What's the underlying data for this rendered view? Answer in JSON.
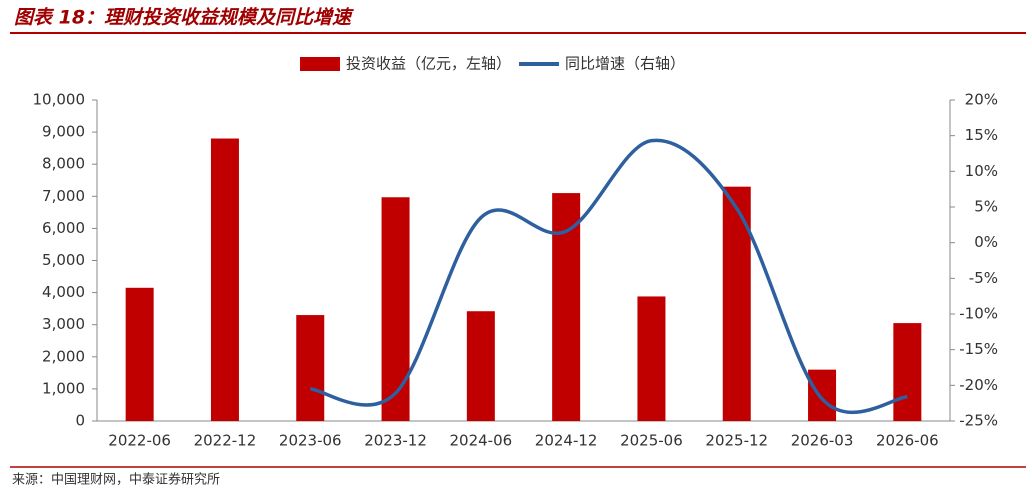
{
  "chart_data": {
    "type": "bar_line",
    "title": "图表 18：理财投资收益规模及同比增速",
    "source": "来源：中国理财网，中泰证券研究所",
    "categories": [
      "2022-06",
      "2022-12",
      "2023-06",
      "2023-12",
      "2024-06",
      "2024-12",
      "2025-06",
      "2025-12",
      "2026-03",
      "2026-06"
    ],
    "series": [
      {
        "name": "投资收益（亿元，左轴）",
        "type": "bar",
        "color": "#c00000",
        "values": [
          4150,
          8800,
          3300,
          6970,
          3420,
          7100,
          3880,
          7300,
          1600,
          3050
        ]
      },
      {
        "name": "同比增速（右轴）",
        "type": "line",
        "axis": "y2",
        "color": "#2e5f9e",
        "values": [
          null,
          null,
          -20.5,
          -21.1,
          3.5,
          1.6,
          14.3,
          4.8,
          -21.9,
          -21.6
        ]
      }
    ],
    "ylim": [
      0,
      10000
    ],
    "yticks": [
      0,
      {
        "value": 1000,
        "label": "1,000"
      },
      {
        "value": 2000,
        "label": "2,000"
      },
      {
        "value": 3000,
        "label": "3,000"
      },
      {
        "value": 4000,
        "label": "4,000"
      },
      {
        "value": 5000,
        "label": "5,000"
      },
      {
        "value": 6000,
        "label": "6,000"
      },
      {
        "value": 7000,
        "label": "7,000"
      },
      {
        "value": 8000,
        "label": "8,000"
      },
      {
        "value": 9000,
        "label": "9,000"
      },
      {
        "value": 10000,
        "label": "10,000"
      }
    ],
    "y2lim": [
      -25,
      20
    ],
    "y2ticks": [
      {
        "value": -25,
        "label": "-25%"
      },
      {
        "value": -20,
        "label": "-20%"
      },
      {
        "value": -15,
        "label": "-15%"
      },
      {
        "value": -10,
        "label": "-10%"
      },
      {
        "value": -5,
        "label": "-5%"
      },
      {
        "value": 0,
        "label": "0%"
      },
      {
        "value": 5,
        "label": "5%"
      },
      {
        "value": 10,
        "label": "10%"
      },
      {
        "value": 15,
        "label": "15%"
      },
      {
        "value": 20,
        "label": "20%"
      }
    ],
    "legend": "top"
  }
}
